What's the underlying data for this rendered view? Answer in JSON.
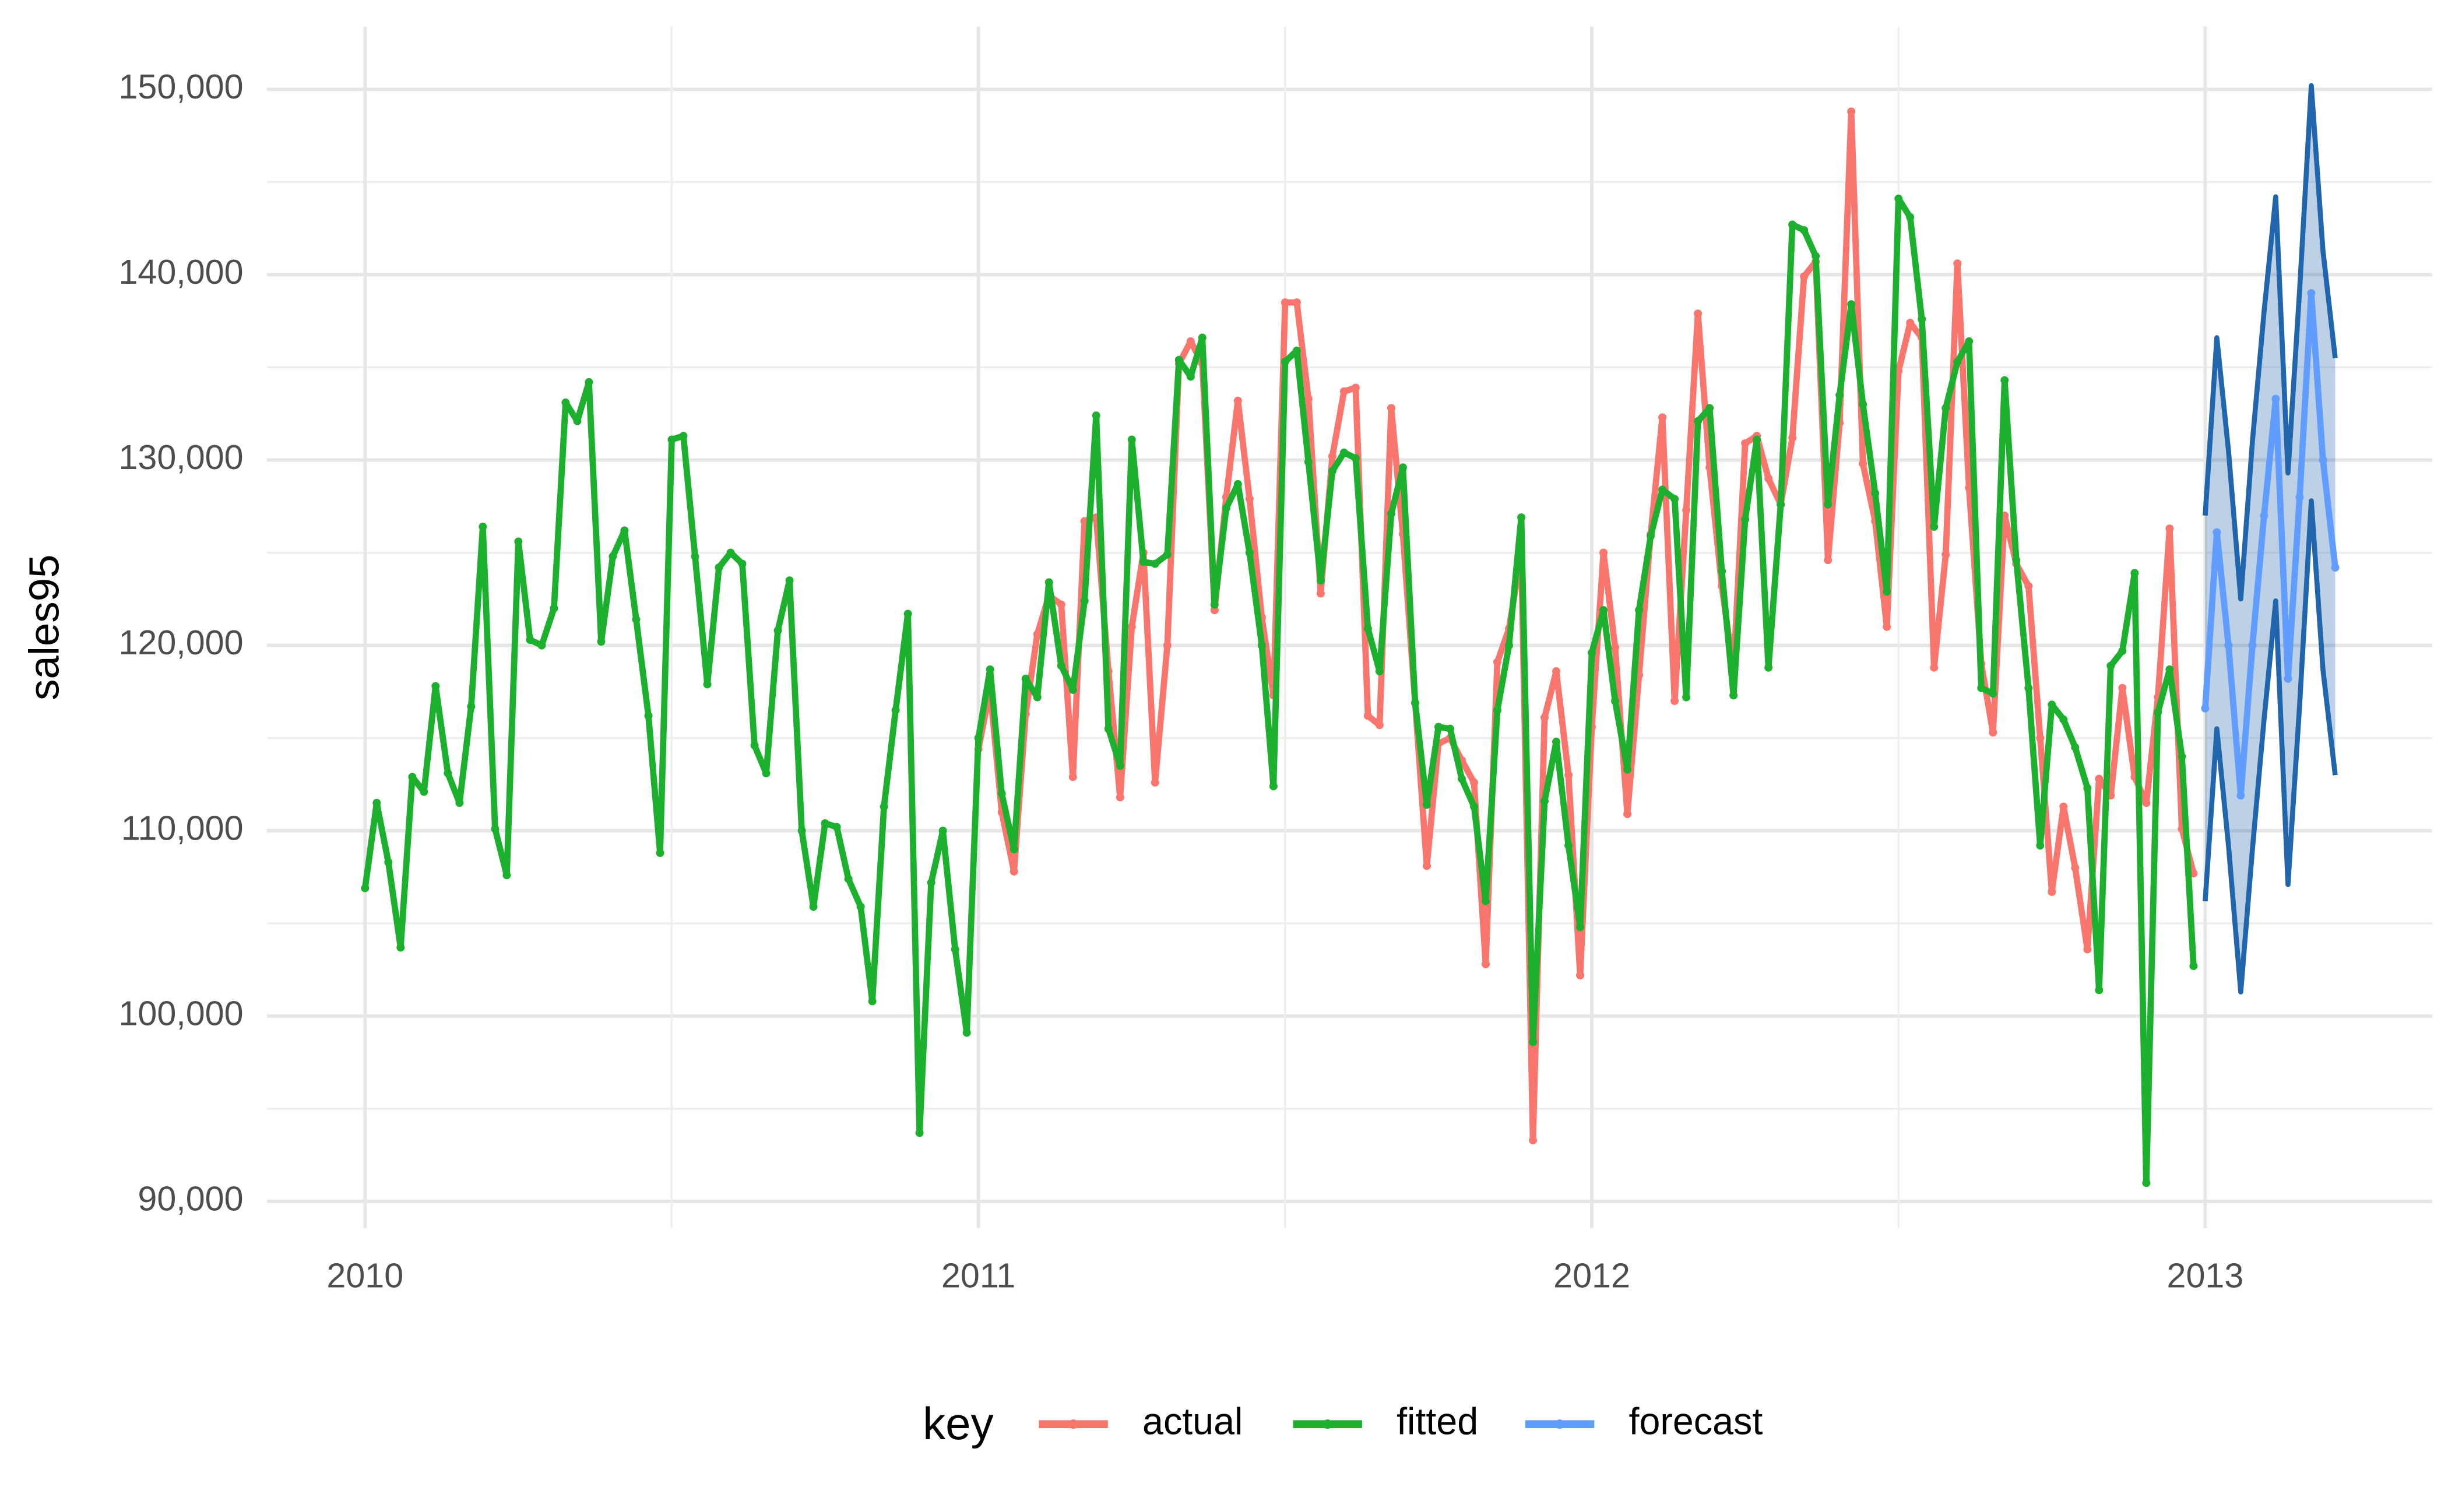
{
  "chart_data": {
    "type": "line",
    "y_label": "sales95",
    "legend_title": "key",
    "legend_position": "bottom",
    "grid": true,
    "xlim": [
      2009.84,
      2013.37
    ],
    "xticks": [
      2010,
      2011,
      2012,
      2013
    ],
    "ylim": [
      88560,
      153380
    ],
    "yticks": [
      {
        "value": 90000,
        "label": "90,000"
      },
      {
        "value": 100000,
        "label": "100,000"
      },
      {
        "value": 110000,
        "label": "110,000"
      },
      {
        "value": 120000,
        "label": "120,000"
      },
      {
        "value": 130000,
        "label": "130,000"
      },
      {
        "value": 140000,
        "label": "140,000"
      },
      {
        "value": 150000,
        "label": "150,000"
      }
    ],
    "x": [
      2010,
      2010.019,
      2010.038,
      2010.058,
      2010.077,
      2010.096,
      2010.115,
      2010.135,
      2010.154,
      2010.173,
      2010.192,
      2010.212,
      2010.231,
      2010.25,
      2010.269,
      2010.288,
      2010.308,
      2010.327,
      2010.346,
      2010.365,
      2010.385,
      2010.404,
      2010.423,
      2010.442,
      2010.462,
      2010.481,
      2010.5,
      2010.519,
      2010.538,
      2010.558,
      2010.577,
      2010.596,
      2010.615,
      2010.635,
      2010.654,
      2010.673,
      2010.692,
      2010.712,
      2010.731,
      2010.75,
      2010.769,
      2010.788,
      2010.808,
      2010.827,
      2010.846,
      2010.865,
      2010.885,
      2010.904,
      2010.923,
      2010.942,
      2010.962,
      2010.981,
      2011,
      2011.019,
      2011.038,
      2011.058,
      2011.077,
      2011.096,
      2011.115,
      2011.135,
      2011.154,
      2011.173,
      2011.192,
      2011.212,
      2011.231,
      2011.25,
      2011.269,
      2011.288,
      2011.308,
      2011.327,
      2011.346,
      2011.365,
      2011.385,
      2011.404,
      2011.423,
      2011.442,
      2011.462,
      2011.481,
      2011.5,
      2011.519,
      2011.538,
      2011.558,
      2011.577,
      2011.596,
      2011.615,
      2011.635,
      2011.654,
      2011.673,
      2011.692,
      2011.712,
      2011.731,
      2011.75,
      2011.769,
      2011.788,
      2011.808,
      2011.827,
      2011.846,
      2011.865,
      2011.885,
      2011.904,
      2011.923,
      2011.942,
      2011.962,
      2011.981,
      2012,
      2012.019,
      2012.038,
      2012.058,
      2012.077,
      2012.096,
      2012.115,
      2012.135,
      2012.154,
      2012.173,
      2012.192,
      2012.212,
      2012.231,
      2012.25,
      2012.269,
      2012.288,
      2012.308,
      2012.327,
      2012.346,
      2012.365,
      2012.385,
      2012.404,
      2012.423,
      2012.442,
      2012.462,
      2012.481,
      2012.5,
      2012.519,
      2012.538,
      2012.558,
      2012.577,
      2012.596,
      2012.615,
      2012.635,
      2012.654,
      2012.673,
      2012.692,
      2012.712,
      2012.731,
      2012.75,
      2012.769,
      2012.788,
      2012.808,
      2012.827,
      2012.846,
      2012.865,
      2012.885,
      2012.904,
      2012.923,
      2012.942,
      2012.962,
      2012.981,
      2013,
      2013.019,
      2013.038,
      2013.058,
      2013.077,
      2013.096,
      2013.115,
      2013.135,
      2013.154,
      2013.173,
      2013.192,
      2013.212
    ],
    "series": [
      {
        "name": "actual",
        "color": "#F8766D",
        "values": [
          null,
          null,
          null,
          null,
          null,
          null,
          null,
          null,
          null,
          null,
          null,
          null,
          null,
          null,
          null,
          null,
          null,
          null,
          null,
          null,
          null,
          null,
          null,
          null,
          null,
          null,
          null,
          null,
          null,
          null,
          null,
          null,
          null,
          null,
          null,
          null,
          null,
          null,
          null,
          null,
          null,
          null,
          null,
          null,
          null,
          null,
          null,
          null,
          null,
          null,
          null,
          null,
          114400,
          117600,
          111000,
          107800,
          116300,
          120600,
          122700,
          122200,
          112900,
          126700,
          126900,
          118600,
          111800,
          121000,
          125000,
          112600,
          120000,
          135200,
          136400,
          135200,
          121900,
          128000,
          133200,
          127900,
          121500,
          117300,
          138500,
          138500,
          133300,
          122800,
          130200,
          133700,
          133900,
          116200,
          115700,
          132800,
          126000,
          116900,
          108100,
          114700,
          115000,
          113800,
          112600,
          102800,
          119100,
          120900,
          125000,
          93300,
          116100,
          118600,
          113000,
          102200,
          115600,
          125000,
          119900,
          110900,
          118400,
          126000,
          132300,
          117000,
          127300,
          137900,
          129600,
          123200,
          118600,
          130900,
          131300,
          129000,
          127600,
          131200,
          139900,
          140700,
          124600,
          132000,
          148800,
          129800,
          126700,
          121000,
          134800,
          137400,
          136600,
          118800,
          124900,
          140600,
          128500,
          119000,
          115300,
          127000,
          124400,
          123200,
          115000,
          106700,
          111300,
          108000,
          103600,
          112800,
          111900,
          117700,
          112900,
          111500,
          117200,
          126300,
          110100,
          107700,
          null,
          null,
          null,
          null,
          null,
          null,
          null,
          null,
          null,
          null,
          null,
          null
        ]
      },
      {
        "name": "fitted",
        "color": "#1DB02F",
        "values": [
          106900,
          111500,
          108300,
          103700,
          112900,
          112100,
          117800,
          113100,
          111500,
          116700,
          126400,
          110100,
          107600,
          125600,
          120300,
          120000,
          122000,
          133100,
          132100,
          134200,
          120200,
          124800,
          126200,
          121400,
          116200,
          108800,
          131100,
          131300,
          124800,
          117900,
          124200,
          125000,
          124400,
          114600,
          113100,
          120800,
          123500,
          110000,
          105900,
          110400,
          110200,
          107400,
          105900,
          100800,
          111300,
          116500,
          121700,
          93700,
          107200,
          110000,
          103600,
          99100,
          115000,
          118700,
          112000,
          109000,
          118200,
          117200,
          123400,
          118900,
          117600,
          122400,
          132400,
          115500,
          113500,
          131100,
          124500,
          124400,
          124900,
          135400,
          134500,
          136600,
          122200,
          127400,
          128700,
          125000,
          120000,
          112400,
          135300,
          135900,
          129900,
          123500,
          129400,
          130400,
          130100,
          120900,
          118600,
          127100,
          129600,
          116900,
          111400,
          115600,
          115500,
          112800,
          111300,
          106200,
          116500,
          120000,
          126900,
          98600,
          111600,
          114800,
          109200,
          104800,
          119600,
          121900,
          117000,
          113300,
          121900,
          125900,
          128400,
          127900,
          117200,
          132100,
          132800,
          124000,
          117300,
          126800,
          131100,
          118800,
          127600,
          142700,
          142400,
          141000,
          127600,
          133500,
          138400,
          133000,
          128200,
          122900,
          144100,
          143100,
          137600,
          126400,
          132800,
          135300,
          136400,
          117700,
          117400,
          134300,
          124600,
          117700,
          109200,
          116800,
          116000,
          114500,
          112300,
          101400,
          118900,
          119700,
          123900,
          91000,
          116400,
          118700,
          114000,
          102700,
          null,
          null,
          null,
          null,
          null,
          null,
          null,
          null,
          null,
          null,
          null,
          null
        ]
      },
      {
        "name": "forecast",
        "color": "#619CFF",
        "band_color": "#2166AC",
        "values": [
          null,
          null,
          null,
          null,
          null,
          null,
          null,
          null,
          null,
          null,
          null,
          null,
          null,
          null,
          null,
          null,
          null,
          null,
          null,
          null,
          null,
          null,
          null,
          null,
          null,
          null,
          null,
          null,
          null,
          null,
          null,
          null,
          null,
          null,
          null,
          null,
          null,
          null,
          null,
          null,
          null,
          null,
          null,
          null,
          null,
          null,
          null,
          null,
          null,
          null,
          null,
          null,
          null,
          null,
          null,
          null,
          null,
          null,
          null,
          null,
          null,
          null,
          null,
          null,
          null,
          null,
          null,
          null,
          null,
          null,
          null,
          null,
          null,
          null,
          null,
          null,
          null,
          null,
          null,
          null,
          null,
          null,
          null,
          null,
          null,
          null,
          null,
          null,
          null,
          null,
          null,
          null,
          null,
          null,
          null,
          null,
          null,
          null,
          null,
          null,
          null,
          null,
          null,
          null,
          null,
          null,
          null,
          null,
          null,
          null,
          null,
          null,
          null,
          null,
          null,
          null,
          null,
          null,
          null,
          null,
          null,
          null,
          null,
          null,
          null,
          null,
          null,
          null,
          null,
          null,
          null,
          null,
          null,
          null,
          null,
          null,
          null,
          null,
          null,
          null,
          null,
          null,
          null,
          null,
          null,
          null,
          null,
          null,
          null,
          null,
          null,
          null,
          null,
          null,
          null,
          null,
          116600,
          126100,
          120000,
          111900,
          120000,
          127000,
          133300,
          118200,
          128000,
          139000,
          130000,
          124200
        ],
        "lower": [
          null,
          null,
          null,
          null,
          null,
          null,
          null,
          null,
          null,
          null,
          null,
          null,
          null,
          null,
          null,
          null,
          null,
          null,
          null,
          null,
          null,
          null,
          null,
          null,
          null,
          null,
          null,
          null,
          null,
          null,
          null,
          null,
          null,
          null,
          null,
          null,
          null,
          null,
          null,
          null,
          null,
          null,
          null,
          null,
          null,
          null,
          null,
          null,
          null,
          null,
          null,
          null,
          null,
          null,
          null,
          null,
          null,
          null,
          null,
          null,
          null,
          null,
          null,
          null,
          null,
          null,
          null,
          null,
          null,
          null,
          null,
          null,
          null,
          null,
          null,
          null,
          null,
          null,
          null,
          null,
          null,
          null,
          null,
          null,
          null,
          null,
          null,
          null,
          null,
          null,
          null,
          null,
          null,
          null,
          null,
          null,
          null,
          null,
          null,
          null,
          null,
          null,
          null,
          null,
          null,
          null,
          null,
          null,
          null,
          null,
          null,
          null,
          null,
          null,
          null,
          null,
          null,
          null,
          null,
          null,
          null,
          null,
          null,
          null,
          null,
          null,
          null,
          null,
          null,
          null,
          null,
          null,
          null,
          null,
          null,
          null,
          null,
          null,
          null,
          null,
          null,
          null,
          null,
          null,
          null,
          null,
          null,
          null,
          null,
          null,
          null,
          null,
          null,
          null,
          null,
          null,
          106200,
          115500,
          109200,
          101300,
          109000,
          116000,
          122400,
          107100,
          116800,
          127800,
          118700,
          113000
        ],
        "upper": [
          null,
          null,
          null,
          null,
          null,
          null,
          null,
          null,
          null,
          null,
          null,
          null,
          null,
          null,
          null,
          null,
          null,
          null,
          null,
          null,
          null,
          null,
          null,
          null,
          null,
          null,
          null,
          null,
          null,
          null,
          null,
          null,
          null,
          null,
          null,
          null,
          null,
          null,
          null,
          null,
          null,
          null,
          null,
          null,
          null,
          null,
          null,
          null,
          null,
          null,
          null,
          null,
          null,
          null,
          null,
          null,
          null,
          null,
          null,
          null,
          null,
          null,
          null,
          null,
          null,
          null,
          null,
          null,
          null,
          null,
          null,
          null,
          null,
          null,
          null,
          null,
          null,
          null,
          null,
          null,
          null,
          null,
          null,
          null,
          null,
          null,
          null,
          null,
          null,
          null,
          null,
          null,
          null,
          null,
          null,
          null,
          null,
          null,
          null,
          null,
          null,
          null,
          null,
          null,
          null,
          null,
          null,
          null,
          null,
          null,
          null,
          null,
          null,
          null,
          null,
          null,
          null,
          null,
          null,
          null,
          null,
          null,
          null,
          null,
          null,
          null,
          null,
          null,
          null,
          null,
          null,
          null,
          null,
          null,
          null,
          null,
          null,
          null,
          null,
          null,
          null,
          null,
          null,
          null,
          null,
          null,
          null,
          null,
          null,
          null,
          null,
          null,
          null,
          null,
          null,
          null,
          127000,
          136600,
          130500,
          122500,
          131000,
          138000,
          144200,
          129300,
          139200,
          150200,
          141300,
          135500
        ]
      }
    ]
  }
}
